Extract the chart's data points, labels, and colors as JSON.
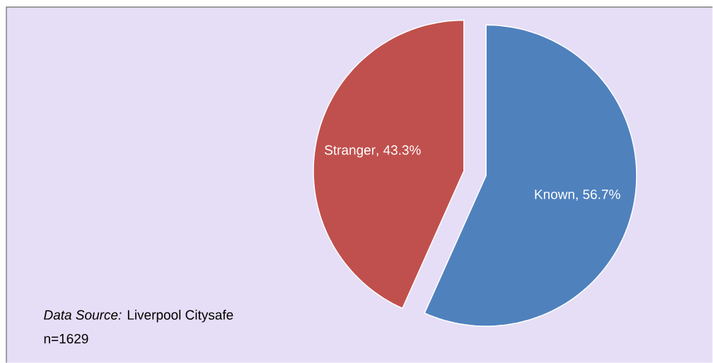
{
  "chart_data": {
    "type": "pie",
    "categories": [
      "Known",
      "Stranger"
    ],
    "values": [
      56.7,
      43.3
    ],
    "value_labels": [
      ", 56.7%",
      ", 43.3%"
    ],
    "colors": [
      "#4f81bd",
      "#c0504d"
    ],
    "annotations": [
      "*Data Source:*  Liverpool Citysafe",
      "n=1629"
    ]
  }
}
